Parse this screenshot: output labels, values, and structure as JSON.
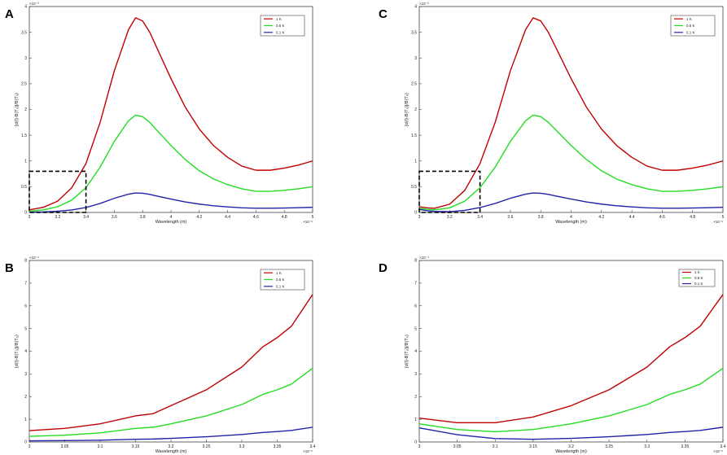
{
  "figure": {
    "panels": [
      {
        "letter": "A"
      },
      {
        "letter": "B"
      },
      {
        "letter": "C"
      },
      {
        "letter": "D"
      }
    ]
  },
  "colors": {
    "red": "#c00000",
    "green": "#22dd22",
    "blue": "#2222aa",
    "box": "#000000"
  },
  "chart_data": [
    {
      "panel": "A",
      "type": "line",
      "xlabel": "Wavelength (m)",
      "ylabel": "[d(I)-B(T₀)]/B(T₀)",
      "x_exponent": "×10⁻⁶",
      "y_exponent": "×10⁻³",
      "xlim": [
        3,
        5
      ],
      "ylim": [
        0,
        4
      ],
      "xticks": [
        3,
        3.2,
        3.4,
        3.6,
        3.8,
        4,
        4.2,
        4.4,
        4.6,
        4.8,
        5
      ],
      "xtick_labels": [
        "3",
        "3.2",
        "3.4",
        "3.6",
        "3.8",
        "4",
        "4.2",
        "4.4",
        "4.6",
        "4.8",
        "5"
      ],
      "yticks": [
        0,
        0.5,
        1,
        1.5,
        2,
        2.5,
        3,
        3.5,
        4
      ],
      "ytick_labels": [
        "0",
        "0.5",
        "1",
        "1.5",
        "2",
        "2.5",
        "3",
        "3.5",
        "4"
      ],
      "legend_position": "top-right",
      "x": [
        3,
        3.1,
        3.2,
        3.3,
        3.4,
        3.5,
        3.6,
        3.7,
        3.75,
        3.8,
        3.85,
        3.9,
        4,
        4.1,
        4.2,
        4.3,
        4.4,
        4.5,
        4.6,
        4.7,
        4.8,
        4.9,
        5
      ],
      "series": [
        {
          "name": "1 K",
          "color": "red",
          "values": [
            0.05,
            0.1,
            0.22,
            0.48,
            0.95,
            1.75,
            2.75,
            3.55,
            3.78,
            3.72,
            3.5,
            3.2,
            2.6,
            2.05,
            1.62,
            1.3,
            1.07,
            0.9,
            0.82,
            0.82,
            0.86,
            0.92,
            1.0
          ]
        },
        {
          "name": "0.5 K",
          "color": "green",
          "values": [
            0.025,
            0.05,
            0.11,
            0.24,
            0.48,
            0.88,
            1.38,
            1.78,
            1.89,
            1.86,
            1.75,
            1.6,
            1.3,
            1.03,
            0.81,
            0.65,
            0.54,
            0.46,
            0.41,
            0.41,
            0.43,
            0.46,
            0.5
          ]
        },
        {
          "name": "0.1 K",
          "color": "blue",
          "values": [
            0.005,
            0.01,
            0.022,
            0.048,
            0.095,
            0.175,
            0.275,
            0.355,
            0.378,
            0.372,
            0.35,
            0.32,
            0.26,
            0.205,
            0.162,
            0.13,
            0.107,
            0.09,
            0.082,
            0.082,
            0.086,
            0.092,
            0.1
          ]
        }
      ],
      "annotation": {
        "type": "dashed-box",
        "x_range": [
          3,
          3.4
        ],
        "y_range": [
          0,
          0.8
        ]
      }
    },
    {
      "panel": "B",
      "type": "line",
      "xlabel": "Wavelength (m)",
      "ylabel": "[d(I)-B(T₀)]/B(T₀)",
      "x_exponent": "×10⁻⁶",
      "y_exponent": "×10⁻⁴",
      "xlim": [
        3,
        3.4
      ],
      "ylim": [
        0,
        8
      ],
      "xticks": [
        3,
        3.05,
        3.1,
        3.15,
        3.2,
        3.25,
        3.3,
        3.35,
        3.4
      ],
      "xtick_labels": [
        "3",
        "3.05",
        "3.1",
        "3.15",
        "3.2",
        "3.25",
        "3.3",
        "3.35",
        "3.4"
      ],
      "yticks": [
        0,
        1,
        2,
        3,
        4,
        5,
        6,
        7,
        8
      ],
      "ytick_labels": [
        "0",
        "1",
        "2",
        "3",
        "4",
        "5",
        "6",
        "7",
        "8"
      ],
      "legend_position": "top-right",
      "x": [
        3,
        3.05,
        3.1,
        3.15,
        3.175,
        3.2,
        3.25,
        3.3,
        3.33,
        3.35,
        3.37,
        3.4
      ],
      "series": [
        {
          "name": "1 K",
          "color": "red",
          "values": [
            0.5,
            0.6,
            0.8,
            1.15,
            1.25,
            1.6,
            2.3,
            3.3,
            4.2,
            4.6,
            5.1,
            6.5
          ]
        },
        {
          "name": "0.5 K",
          "color": "green",
          "values": [
            0.25,
            0.3,
            0.4,
            0.6,
            0.65,
            0.8,
            1.15,
            1.65,
            2.1,
            2.3,
            2.55,
            3.25
          ]
        },
        {
          "name": "0.1 K",
          "color": "blue",
          "values": [
            0.05,
            0.06,
            0.08,
            0.12,
            0.13,
            0.16,
            0.23,
            0.33,
            0.42,
            0.46,
            0.51,
            0.65
          ]
        }
      ]
    },
    {
      "panel": "C",
      "type": "line",
      "xlabel": "Wavelength (m)",
      "ylabel": "[d(I)-B(T₀)]/B(T₀)",
      "x_exponent": "×10⁻⁶",
      "y_exponent": "×10⁻³",
      "xlim": [
        3,
        5
      ],
      "ylim": [
        0,
        4
      ],
      "xticks": [
        3,
        3.2,
        3.4,
        3.6,
        3.8,
        4,
        4.2,
        4.4,
        4.6,
        4.8,
        5
      ],
      "xtick_labels": [
        "3",
        "3.2",
        "3.4",
        "3.6",
        "3.8",
        "4",
        "4.2",
        "4.4",
        "4.6",
        "4.8",
        "5"
      ],
      "yticks": [
        0,
        0.5,
        1,
        1.5,
        2,
        2.5,
        3,
        3.5,
        4
      ],
      "ytick_labels": [
        "0",
        "0.5",
        "1",
        "1.5",
        "2",
        "2.5",
        "3",
        "3.5",
        "4"
      ],
      "legend_position": "top-right",
      "x": [
        3,
        3.05,
        3.1,
        3.2,
        3.3,
        3.4,
        3.5,
        3.6,
        3.7,
        3.75,
        3.8,
        3.85,
        3.9,
        4,
        4.1,
        4.2,
        4.3,
        4.4,
        4.5,
        4.6,
        4.7,
        4.8,
        4.9,
        5
      ],
      "series": [
        {
          "name": "1 K",
          "color": "red",
          "values": [
            0.11,
            0.09,
            0.08,
            0.16,
            0.43,
            0.95,
            1.75,
            2.75,
            3.55,
            3.78,
            3.72,
            3.5,
            3.2,
            2.6,
            2.05,
            1.62,
            1.3,
            1.07,
            0.9,
            0.82,
            0.82,
            0.86,
            0.92,
            1.0
          ]
        },
        {
          "name": "0.5 K",
          "color": "green",
          "values": [
            0.08,
            0.06,
            0.05,
            0.09,
            0.22,
            0.48,
            0.88,
            1.38,
            1.78,
            1.89,
            1.86,
            1.75,
            1.6,
            1.3,
            1.03,
            0.81,
            0.65,
            0.54,
            0.46,
            0.41,
            0.41,
            0.43,
            0.46,
            0.5
          ]
        },
        {
          "name": "0.1 K",
          "color": "blue",
          "values": [
            0.06,
            0.035,
            0.02,
            0.015,
            0.04,
            0.095,
            0.175,
            0.275,
            0.355,
            0.378,
            0.372,
            0.35,
            0.32,
            0.26,
            0.205,
            0.162,
            0.13,
            0.107,
            0.09,
            0.082,
            0.082,
            0.086,
            0.092,
            0.1
          ]
        }
      ],
      "annotation": {
        "type": "dashed-box",
        "x_range": [
          3,
          3.4
        ],
        "y_range": [
          0,
          0.8
        ]
      }
    },
    {
      "panel": "D",
      "type": "line",
      "xlabel": "Wavelength (m)",
      "ylabel": "[d(I)-B(T₀)]/B(T₀)",
      "x_exponent": "×10⁻⁶",
      "y_exponent": "×10⁻⁴",
      "xlim": [
        3,
        3.4
      ],
      "ylim": [
        0,
        8
      ],
      "xticks": [
        3,
        3.05,
        3.1,
        3.15,
        3.2,
        3.25,
        3.3,
        3.35,
        3.4
      ],
      "xtick_labels": [
        "3",
        "3.05",
        "3.1",
        "3.15",
        "3.2",
        "3.25",
        "3.3",
        "3.35",
        "3.4"
      ],
      "yticks": [
        0,
        1,
        2,
        3,
        4,
        5,
        6,
        7,
        8
      ],
      "ytick_labels": [
        "0",
        "1",
        "2",
        "3",
        "4",
        "5",
        "6",
        "7",
        "8"
      ],
      "legend_position": "top-right",
      "x": [
        3,
        3.05,
        3.1,
        3.15,
        3.2,
        3.25,
        3.3,
        3.33,
        3.35,
        3.37,
        3.4
      ],
      "series": [
        {
          "name": "1 K",
          "color": "red",
          "values": [
            1.05,
            0.85,
            0.85,
            1.1,
            1.6,
            2.3,
            3.3,
            4.2,
            4.6,
            5.1,
            6.5
          ]
        },
        {
          "name": "0.5 K",
          "color": "green",
          "values": [
            0.8,
            0.55,
            0.45,
            0.55,
            0.8,
            1.15,
            1.65,
            2.1,
            2.3,
            2.55,
            3.25
          ]
        },
        {
          "name": "0.1 K",
          "color": "blue",
          "values": [
            0.62,
            0.32,
            0.15,
            0.12,
            0.16,
            0.23,
            0.33,
            0.42,
            0.46,
            0.51,
            0.65
          ]
        }
      ]
    }
  ]
}
